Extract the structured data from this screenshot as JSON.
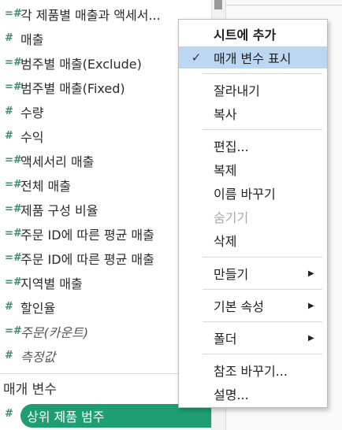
{
  "fields": [
    {
      "icon": "=#",
      "label": "각 제품별 매출과 액세서...",
      "italic": false
    },
    {
      "icon": "#",
      "label": "매출",
      "italic": false
    },
    {
      "icon": "=#",
      "label": "범주별 매출(Exclude)",
      "italic": false
    },
    {
      "icon": "=#",
      "label": "범주별 매출(Fixed)",
      "italic": false
    },
    {
      "icon": "#",
      "label": "수량",
      "italic": false
    },
    {
      "icon": "#",
      "label": "수익",
      "italic": false
    },
    {
      "icon": "=#",
      "label": "액세서리 매출",
      "italic": false
    },
    {
      "icon": "=#",
      "label": "전체 매출",
      "italic": false
    },
    {
      "icon": "=#",
      "label": "제품 구성 비율",
      "italic": false
    },
    {
      "icon": "=#",
      "label": "주문 ID에 따른 평균 매출",
      "italic": false
    },
    {
      "icon": "=#",
      "label": "주문 ID에 따른 평균 매출",
      "italic": false
    },
    {
      "icon": "=#",
      "label": "지역별 매출",
      "italic": false
    },
    {
      "icon": "#",
      "label": "할인율",
      "italic": false
    },
    {
      "icon": "=#",
      "label": "주문(카운트)",
      "italic": true
    },
    {
      "icon": "#",
      "label": "측정값",
      "italic": true
    }
  ],
  "parameters_section": {
    "title": "매개 변수",
    "items": [
      {
        "icon": "#",
        "label": "상위 제품 범주"
      }
    ]
  },
  "context_menu": {
    "items": [
      {
        "label": "시트에 추가",
        "bold": true
      },
      {
        "label": "매개 변수 표시",
        "checked": true,
        "highlighted": true
      },
      {
        "label": "잘라내기"
      },
      {
        "label": "복사"
      },
      {
        "label": "편집..."
      },
      {
        "label": "복제"
      },
      {
        "label": "이름 바꾸기"
      },
      {
        "label": "숨기기",
        "disabled": true
      },
      {
        "label": "삭제"
      },
      {
        "label": "만들기",
        "submenu": true
      },
      {
        "label": "기본 속성",
        "submenu": true
      },
      {
        "label": "폴더",
        "submenu": true
      },
      {
        "label": "참조 바꾸기..."
      },
      {
        "label": "설명..."
      }
    ],
    "check_glyph": "✓",
    "submenu_glyph": "▶"
  },
  "colors": {
    "pill_bg": "#1f9e73",
    "highlight_bg": "#bcd7f2",
    "field_icon": "#3c8c6e"
  }
}
